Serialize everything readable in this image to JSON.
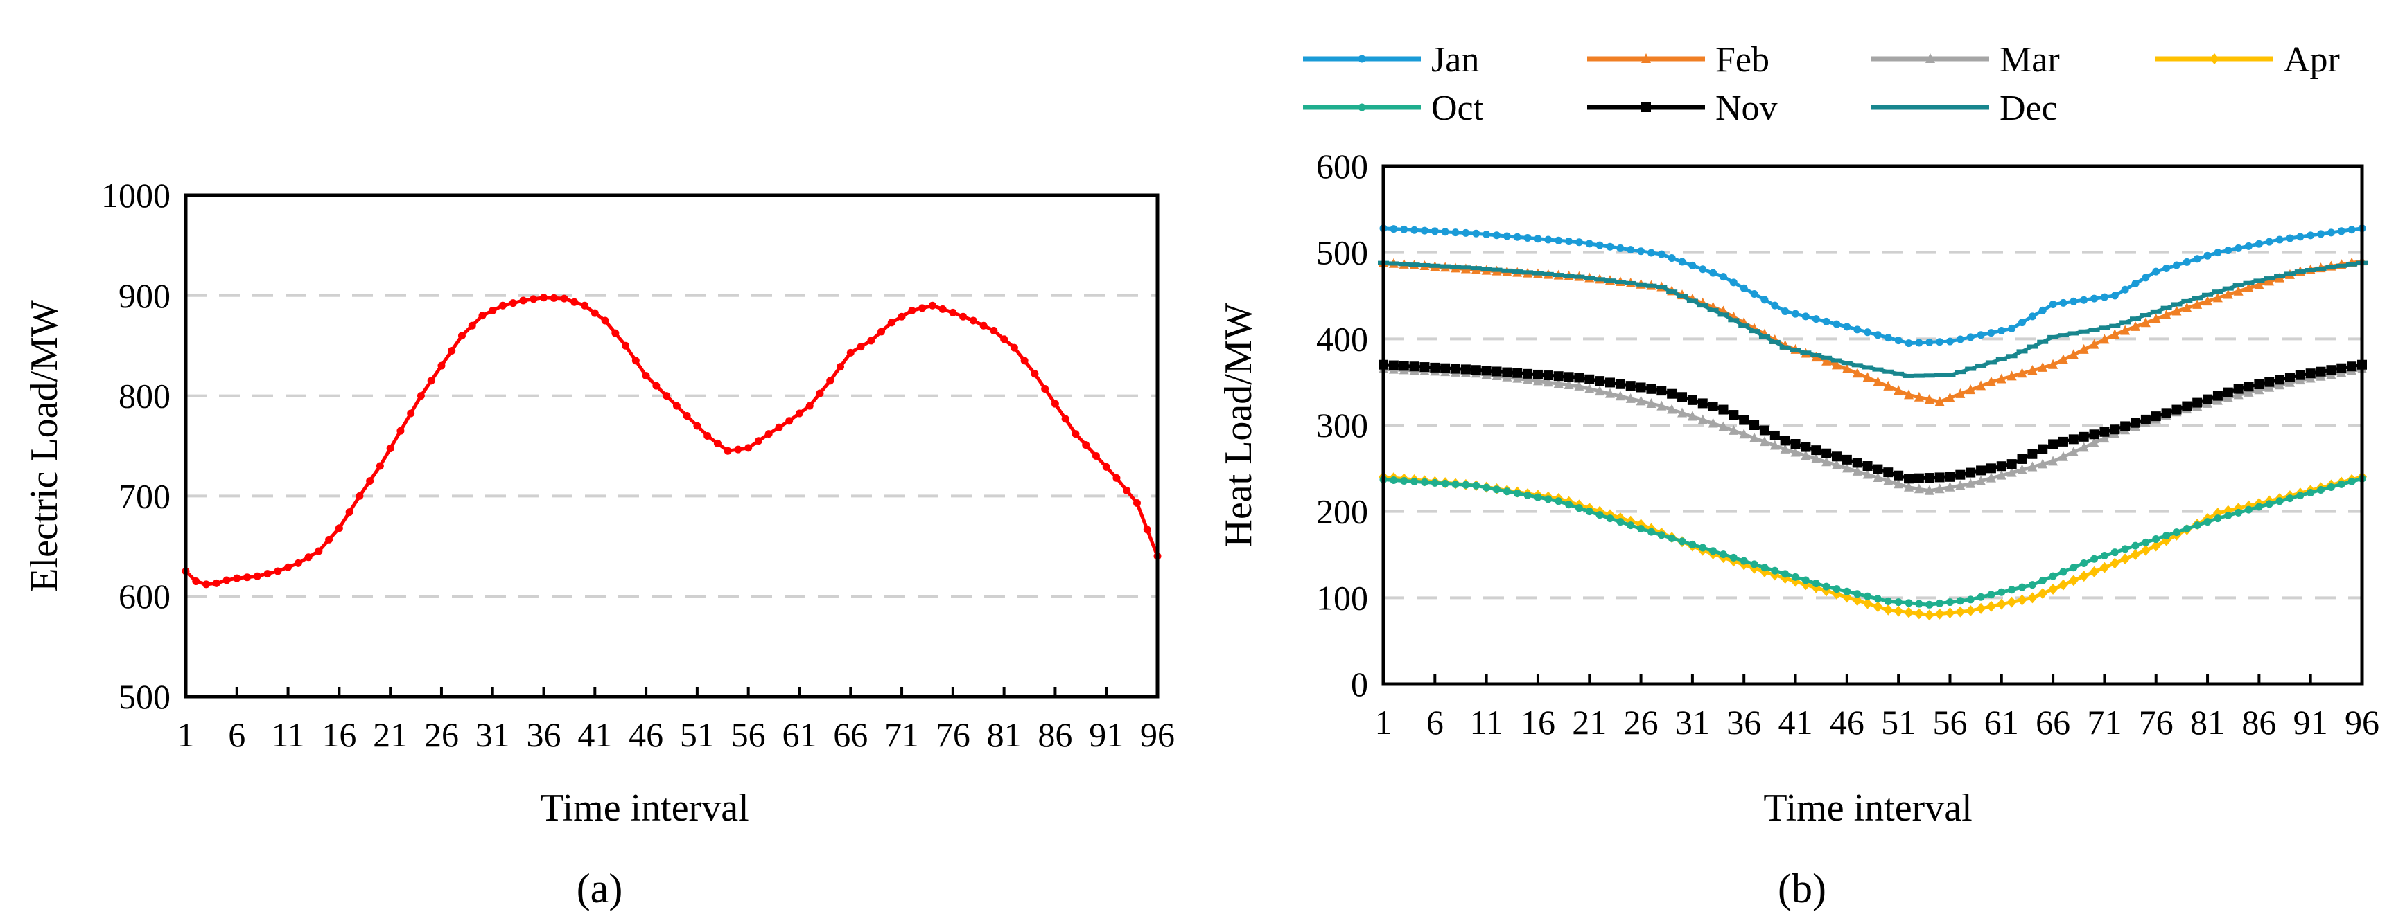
{
  "chart_data": [
    {
      "panel": "(a)",
      "type": "line",
      "xlabel": "Time interval",
      "ylabel": "Electric Load/MW",
      "ylim": [
        500,
        1000
      ],
      "yticks": [
        500,
        600,
        700,
        800,
        900,
        1000
      ],
      "xlim": [
        1,
        96
      ],
      "xticks": [
        1,
        6,
        11,
        16,
        21,
        26,
        31,
        36,
        41,
        46,
        51,
        56,
        61,
        66,
        71,
        76,
        81,
        86,
        91,
        96
      ],
      "grid": true,
      "series": [
        {
          "name": "Electric load",
          "color": "#ff0000",
          "keypoints": [
            [
              1,
              625
            ],
            [
              2,
              615
            ],
            [
              3,
              612
            ],
            [
              4,
              613
            ],
            [
              5,
              616
            ],
            [
              6,
              618
            ],
            [
              8,
              620
            ],
            [
              10,
              625
            ],
            [
              12,
              633
            ],
            [
              14,
              645
            ],
            [
              16,
              668
            ],
            [
              18,
              700
            ],
            [
              20,
              730
            ],
            [
              22,
              765
            ],
            [
              24,
              800
            ],
            [
              26,
              830
            ],
            [
              28,
              860
            ],
            [
              30,
              880
            ],
            [
              32,
              890
            ],
            [
              34,
              895
            ],
            [
              36,
              898
            ],
            [
              38,
              897
            ],
            [
              40,
              890
            ],
            [
              42,
              875
            ],
            [
              44,
              850
            ],
            [
              46,
              820
            ],
            [
              48,
              800
            ],
            [
              50,
              780
            ],
            [
              52,
              760
            ],
            [
              54,
              745
            ],
            [
              56,
              748
            ],
            [
              58,
              762
            ],
            [
              60,
              775
            ],
            [
              62,
              790
            ],
            [
              64,
              815
            ],
            [
              66,
              843
            ],
            [
              68,
              855
            ],
            [
              70,
              873
            ],
            [
              72,
              885
            ],
            [
              74,
              890
            ],
            [
              76,
              883
            ],
            [
              78,
              875
            ],
            [
              80,
              865
            ],
            [
              82,
              848
            ],
            [
              84,
              822
            ],
            [
              86,
              792
            ],
            [
              88,
              762
            ],
            [
              90,
              740
            ],
            [
              92,
              718
            ],
            [
              94,
              693
            ],
            [
              96,
              640
            ]
          ]
        }
      ]
    },
    {
      "panel": "(b)",
      "type": "line",
      "xlabel": "Time interval",
      "ylabel": "Heat Load/MW",
      "ylim": [
        0,
        600
      ],
      "yticks": [
        0,
        100,
        200,
        300,
        400,
        500,
        600
      ],
      "xlim": [
        1,
        96
      ],
      "xticks": [
        1,
        6,
        11,
        16,
        21,
        26,
        31,
        36,
        41,
        46,
        51,
        56,
        61,
        66,
        71,
        76,
        81,
        86,
        91,
        96
      ],
      "grid": true,
      "legend_position": "top",
      "series": [
        {
          "name": "Jan",
          "color": "#1a9bd7",
          "marker": "circle",
          "keypoints": [
            [
              1,
              528
            ],
            [
              10,
              522
            ],
            [
              20,
              512
            ],
            [
              28,
              498
            ],
            [
              34,
              472
            ],
            [
              40,
              432
            ],
            [
              46,
              414
            ],
            [
              52,
              395
            ],
            [
              56,
              397
            ],
            [
              62,
              412
            ],
            [
              66,
              440
            ],
            [
              72,
              450
            ],
            [
              76,
              478
            ],
            [
              82,
              500
            ],
            [
              88,
              515
            ],
            [
              96,
              528
            ]
          ]
        },
        {
          "name": "Feb",
          "color": "#f07f24",
          "marker": "triangle",
          "keypoints": [
            [
              1,
              488
            ],
            [
              10,
              480
            ],
            [
              20,
              472
            ],
            [
              28,
              460
            ],
            [
              34,
              432
            ],
            [
              40,
              392
            ],
            [
              46,
              365
            ],
            [
              52,
              335
            ],
            [
              55,
              327
            ],
            [
              60,
              350
            ],
            [
              66,
              370
            ],
            [
              72,
              405
            ],
            [
              78,
              432
            ],
            [
              84,
              455
            ],
            [
              90,
              478
            ],
            [
              96,
              490
            ]
          ]
        },
        {
          "name": "Mar",
          "color": "#a5a5a5",
          "marker": "triangle",
          "keypoints": [
            [
              1,
              365
            ],
            [
              10,
              360
            ],
            [
              20,
              345
            ],
            [
              28,
              322
            ],
            [
              34,
              298
            ],
            [
              40,
              272
            ],
            [
              46,
              250
            ],
            [
              52,
              228
            ],
            [
              54,
              224
            ],
            [
              58,
              232
            ],
            [
              66,
              258
            ],
            [
              72,
              290
            ],
            [
              78,
              315
            ],
            [
              84,
              335
            ],
            [
              90,
              352
            ],
            [
              96,
              365
            ]
          ]
        },
        {
          "name": "Apr",
          "color": "#ffc000",
          "marker": "diamond",
          "keypoints": [
            [
              1,
              240
            ],
            [
              10,
              230
            ],
            [
              18,
              215
            ],
            [
              26,
              185
            ],
            [
              32,
              155
            ],
            [
              38,
              130
            ],
            [
              44,
              108
            ],
            [
              50,
              86
            ],
            [
              54,
              80
            ],
            [
              58,
              85
            ],
            [
              64,
              100
            ],
            [
              70,
              130
            ],
            [
              76,
              160
            ],
            [
              82,
              198
            ],
            [
              88,
              215
            ],
            [
              96,
              240
            ]
          ]
        },
        {
          "name": "Oct",
          "color": "#1fae8e",
          "marker": "circle",
          "keypoints": [
            [
              1,
              237
            ],
            [
              10,
              230
            ],
            [
              18,
              212
            ],
            [
              26,
              180
            ],
            [
              32,
              158
            ],
            [
              38,
              135
            ],
            [
              44,
              113
            ],
            [
              50,
              96
            ],
            [
              54,
              92
            ],
            [
              58,
              98
            ],
            [
              64,
              115
            ],
            [
              70,
              145
            ],
            [
              76,
              168
            ],
            [
              82,
              192
            ],
            [
              88,
              212
            ],
            [
              96,
              238
            ]
          ]
        },
        {
          "name": "Nov",
          "color": "#000000",
          "marker": "square",
          "keypoints": [
            [
              1,
              370
            ],
            [
              10,
              364
            ],
            [
              20,
              355
            ],
            [
              28,
              340
            ],
            [
              34,
              318
            ],
            [
              40,
              282
            ],
            [
              46,
              260
            ],
            [
              52,
              238
            ],
            [
              56,
              240
            ],
            [
              62,
              255
            ],
            [
              66,
              278
            ],
            [
              72,
              295
            ],
            [
              78,
              318
            ],
            [
              84,
              342
            ],
            [
              90,
              358
            ],
            [
              96,
              370
            ]
          ]
        },
        {
          "name": "Dec",
          "color": "#18868e",
          "marker": "dash",
          "keypoints": [
            [
              1,
              488
            ],
            [
              10,
              482
            ],
            [
              20,
              472
            ],
            [
              28,
              460
            ],
            [
              34,
              428
            ],
            [
              40,
              390
            ],
            [
              46,
              372
            ],
            [
              52,
              357
            ],
            [
              56,
              358
            ],
            [
              62,
              380
            ],
            [
              66,
              402
            ],
            [
              72,
              415
            ],
            [
              78,
              440
            ],
            [
              84,
              462
            ],
            [
              90,
              478
            ],
            [
              96,
              488
            ]
          ]
        }
      ]
    }
  ]
}
